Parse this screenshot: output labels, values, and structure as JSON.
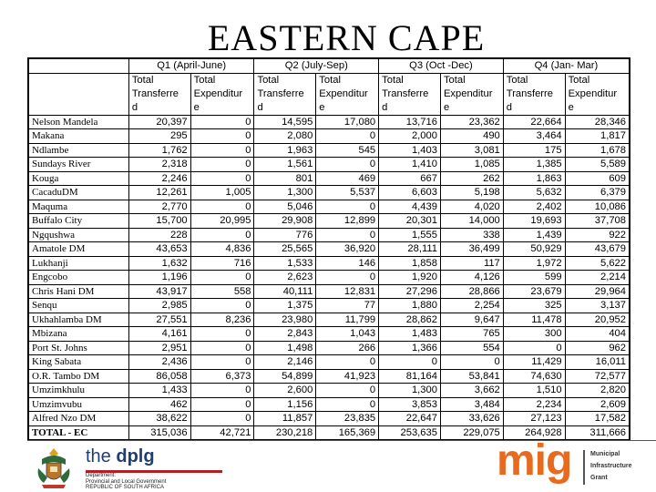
{
  "title": "EASTERN CAPE",
  "header": {
    "quarters": [
      "Q1 (April-June)",
      "Q2 (July-Sep)",
      "Q3 (Oct -Dec)",
      "Q4 (Jan- Mar)"
    ],
    "sub_row1": [
      "Total",
      "Total",
      "Total",
      "Total",
      "Total",
      "Total",
      "Total",
      "Total"
    ],
    "sub_row2": [
      "Transferre",
      "Expenditur",
      "Transferre",
      "Expenditur",
      "Transferre",
      "Expenditur",
      "Transferre",
      "Expenditur"
    ],
    "sub_row3": [
      "d",
      "e",
      "d",
      "e",
      "d",
      "e",
      "d",
      "e"
    ]
  },
  "rows": [
    {
      "name": "Nelson Mandela",
      "values": [
        "20,397",
        "0",
        "14,595",
        "17,080",
        "13,716",
        "23,362",
        "22,664",
        "28,346"
      ]
    },
    {
      "name": "Makana",
      "values": [
        "295",
        "0",
        "2,080",
        "0",
        "2,000",
        "490",
        "3,464",
        "1,817"
      ]
    },
    {
      "name": "Ndlambe",
      "values": [
        "1,762",
        "0",
        "1,963",
        "545",
        "1,403",
        "3,081",
        "175",
        "1,678"
      ]
    },
    {
      "name": "Sundays River",
      "values": [
        "2,318",
        "0",
        "1,561",
        "0",
        "1,410",
        "1,085",
        "1,385",
        "5,589"
      ]
    },
    {
      "name": "Kouga",
      "values": [
        "2,246",
        "0",
        "801",
        "469",
        "667",
        "262",
        "1,863",
        "609"
      ]
    },
    {
      "name": "CacaduDM",
      "values": [
        "12,261",
        "1,005",
        "1,300",
        "5,537",
        "6,603",
        "5,198",
        "5,632",
        "6,379"
      ]
    },
    {
      "name": "Maquma",
      "values": [
        "2,770",
        "0",
        "5,046",
        "0",
        "4,439",
        "4,020",
        "2,402",
        "10,086"
      ]
    },
    {
      "name": "Buffalo City",
      "values": [
        "15,700",
        "20,995",
        "29,908",
        "12,899",
        "20,301",
        "14,000",
        "19,693",
        "37,708"
      ]
    },
    {
      "name": "Ngqushwa",
      "values": [
        "228",
        "0",
        "776",
        "0",
        "1,555",
        "338",
        "1,439",
        "922"
      ]
    },
    {
      "name": "Amatole DM",
      "values": [
        "43,653",
        "4,836",
        "25,565",
        "36,920",
        "28,111",
        "36,499",
        "50,929",
        "43,679"
      ]
    },
    {
      "name": "Lukhanji",
      "values": [
        "1,632",
        "716",
        "1,533",
        "146",
        "1,858",
        "117",
        "1,972",
        "5,622"
      ]
    },
    {
      "name": "Engcobo",
      "values": [
        "1,196",
        "0",
        "2,623",
        "0",
        "1,920",
        "4,126",
        "599",
        "2,214"
      ]
    },
    {
      "name": "Chris Hani DM",
      "values": [
        "43,917",
        "558",
        "40,111",
        "12,831",
        "27,296",
        "28,866",
        "23,679",
        "29,964"
      ]
    },
    {
      "name": "Senqu",
      "values": [
        "2,985",
        "0",
        "1,375",
        "77",
        "1,880",
        "2,254",
        "325",
        "3,137"
      ]
    },
    {
      "name": "Ukhahlamba DM",
      "values": [
        "27,551",
        "8,236",
        "23,980",
        "11,799",
        "28,862",
        "9,647",
        "11,478",
        "20,952"
      ]
    },
    {
      "name": "Mbizana",
      "values": [
        "4,161",
        "0",
        "2,843",
        "1,043",
        "1,483",
        "765",
        "300",
        "404"
      ]
    },
    {
      "name": "Port St. Johns",
      "values": [
        "2,951",
        "0",
        "1,498",
        "266",
        "1,366",
        "554",
        "0",
        "962"
      ]
    },
    {
      "name": "King Sabata",
      "values": [
        "2,436",
        "0",
        "2,146",
        "0",
        "0",
        "0",
        "11,429",
        "16,011"
      ]
    },
    {
      "name": "O.R. Tambo DM",
      "values": [
        "86,058",
        "6,373",
        "54,899",
        "41,923",
        "81,164",
        "53,841",
        "74,630",
        "72,577"
      ]
    },
    {
      "name": "Umzimkhulu",
      "values": [
        "1,433",
        "0",
        "2,600",
        "0",
        "1,300",
        "3,662",
        "1,510",
        "2,820"
      ]
    },
    {
      "name": "Umzimvubu",
      "values": [
        "462",
        "0",
        "1,156",
        "0",
        "3,853",
        "3,484",
        "2,234",
        "2,609"
      ]
    },
    {
      "name": "Alfred Nzo DM",
      "values": [
        "38,622",
        "0",
        "11,857",
        "23,835",
        "22,647",
        "33,626",
        "27,123",
        "17,582"
      ]
    }
  ],
  "total": {
    "name": "TOTAL - EC",
    "values": [
      "315,036",
      "42,721",
      "230,218",
      "165,369",
      "253,635",
      "229,075",
      "264,928",
      "311,666"
    ]
  },
  "footer": {
    "dplg_the": "the ",
    "dplg_name": "dplg",
    "dplg_lines": [
      "Department:",
      "Provincial and Local Government",
      "REPUBLIC OF SOUTH AFRICA"
    ],
    "mig_word": "mig",
    "mig_lines": [
      "Municipal",
      "Infrastructure",
      "Grant"
    ],
    "colors": {
      "mig_orange": "#e86a1e",
      "dplg_blue": "#1f3f73",
      "dplg_red": "#b12025"
    }
  }
}
